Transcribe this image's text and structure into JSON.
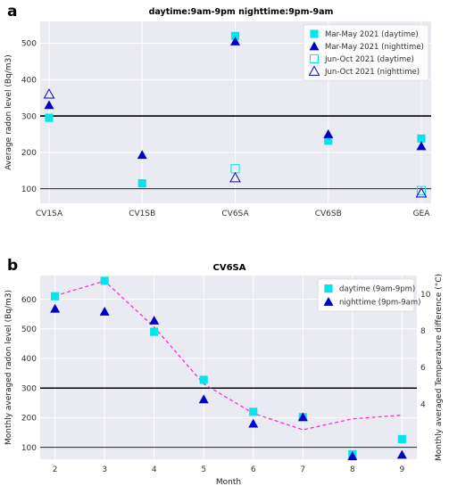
{
  "panel_labels": [
    "a",
    "b"
  ],
  "colors": {
    "plot_bg": "#eaeaf2",
    "grid": "#ffffff",
    "cyan": "#00e5ee",
    "blue": "#0000cd",
    "pink": "#ff1fcf",
    "ref_line": "#000000"
  },
  "chart_data": [
    {
      "type": "scatter",
      "panel": "a",
      "title": "daytime:9am-9pm   nighttime:9pm-9am",
      "xlabel": "",
      "ylabel": "Average radon level (Bq/m3)",
      "categories": [
        "CV1SA",
        "CV1SB",
        "CV6SA",
        "CV6SB",
        "GEA"
      ],
      "ylim": [
        60,
        560
      ],
      "yticks": [
        100,
        200,
        300,
        400,
        500
      ],
      "reference_lines": [
        {
          "y": 300,
          "style": "thick"
        },
        {
          "y": 100,
          "style": "thin"
        }
      ],
      "grid": true,
      "legend_position": "top-right",
      "series": [
        {
          "name": "Mar-May 2021 (daytime)",
          "marker": "square-filled",
          "color": "#00e5ee",
          "values": [
            295,
            115,
            520,
            232,
            238
          ]
        },
        {
          "name": "Mar-May 2021 (nighttime)",
          "marker": "triangle-filled",
          "color": "#0000cd",
          "values": [
            330,
            193,
            505,
            250,
            217
          ]
        },
        {
          "name": "Jun-Oct 2021 (daytime)",
          "marker": "square-open",
          "color": "#00e5ee",
          "values": [
            null,
            null,
            155,
            null,
            95
          ]
        },
        {
          "name": "Jun-Oct 2021 (nighttime)",
          "marker": "triangle-open",
          "color": "#0000cd",
          "values": [
            360,
            null,
            130,
            null,
            88
          ]
        }
      ]
    },
    {
      "type": "scatter",
      "panel": "b",
      "title": "CV6SA",
      "xlabel": "Month",
      "ylabel": "Monthly averaged radon level (Bq/m3)",
      "y2label": "Monthly averaged Temperature difference (°C)",
      "x": [
        2,
        3,
        4,
        5,
        6,
        7,
        8,
        9
      ],
      "xlim": [
        1.7,
        9.3
      ],
      "ylim": [
        60,
        680
      ],
      "yticks": [
        100,
        200,
        300,
        400,
        500,
        600
      ],
      "y2lim": [
        1.0,
        11.0
      ],
      "y2ticks": [
        4,
        6,
        8,
        10
      ],
      "reference_lines": [
        {
          "y": 300,
          "style": "thick"
        },
        {
          "y": 100,
          "style": "thin"
        }
      ],
      "grid": true,
      "legend_position": "top-right",
      "series": [
        {
          "name": "daytime (9am-9pm)",
          "marker": "square-filled",
          "color": "#00e5ee",
          "axis": "left",
          "values": [
            610,
            662,
            490,
            328,
            220,
            202,
            77,
            128
          ]
        },
        {
          "name": "nighttime (9pm-9am)",
          "marker": "triangle-filled",
          "color": "#0000cd",
          "axis": "left",
          "values": [
            568,
            558,
            528,
            262,
            180,
            202,
            70,
            75
          ]
        },
        {
          "name": "",
          "marker": "dashed-line",
          "color": "#ff1fcf",
          "axis": "right",
          "values": [
            9.9,
            10.7,
            8.2,
            5.1,
            3.5,
            2.6,
            3.2,
            3.4
          ]
        }
      ]
    }
  ]
}
